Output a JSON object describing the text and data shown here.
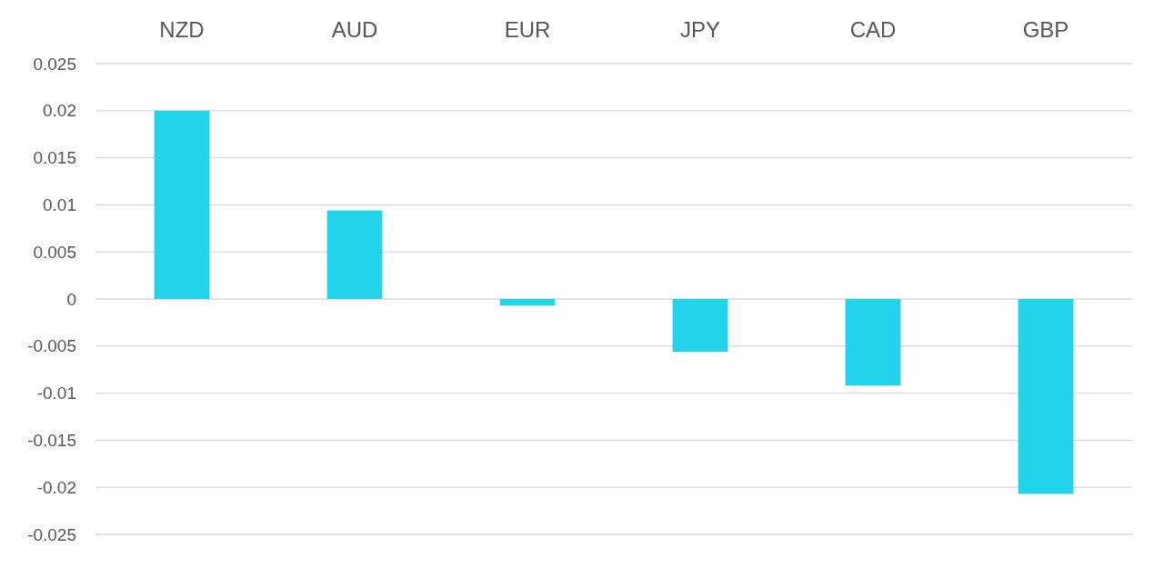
{
  "chart_data": {
    "type": "bar",
    "categories": [
      "NZD",
      "AUD",
      "EUR",
      "JPY",
      "CAD",
      "GBP"
    ],
    "values": [
      0.02,
      0.0094,
      -0.0007,
      -0.0056,
      -0.0092,
      -0.0207
    ],
    "color": "#22d3ea",
    "ylim": [
      -0.025,
      0.025
    ],
    "yticks": [
      -0.025,
      -0.02,
      -0.015,
      -0.01,
      -0.005,
      0,
      0.005,
      0.01,
      0.015,
      0.02,
      0.025
    ],
    "grid": "y"
  }
}
